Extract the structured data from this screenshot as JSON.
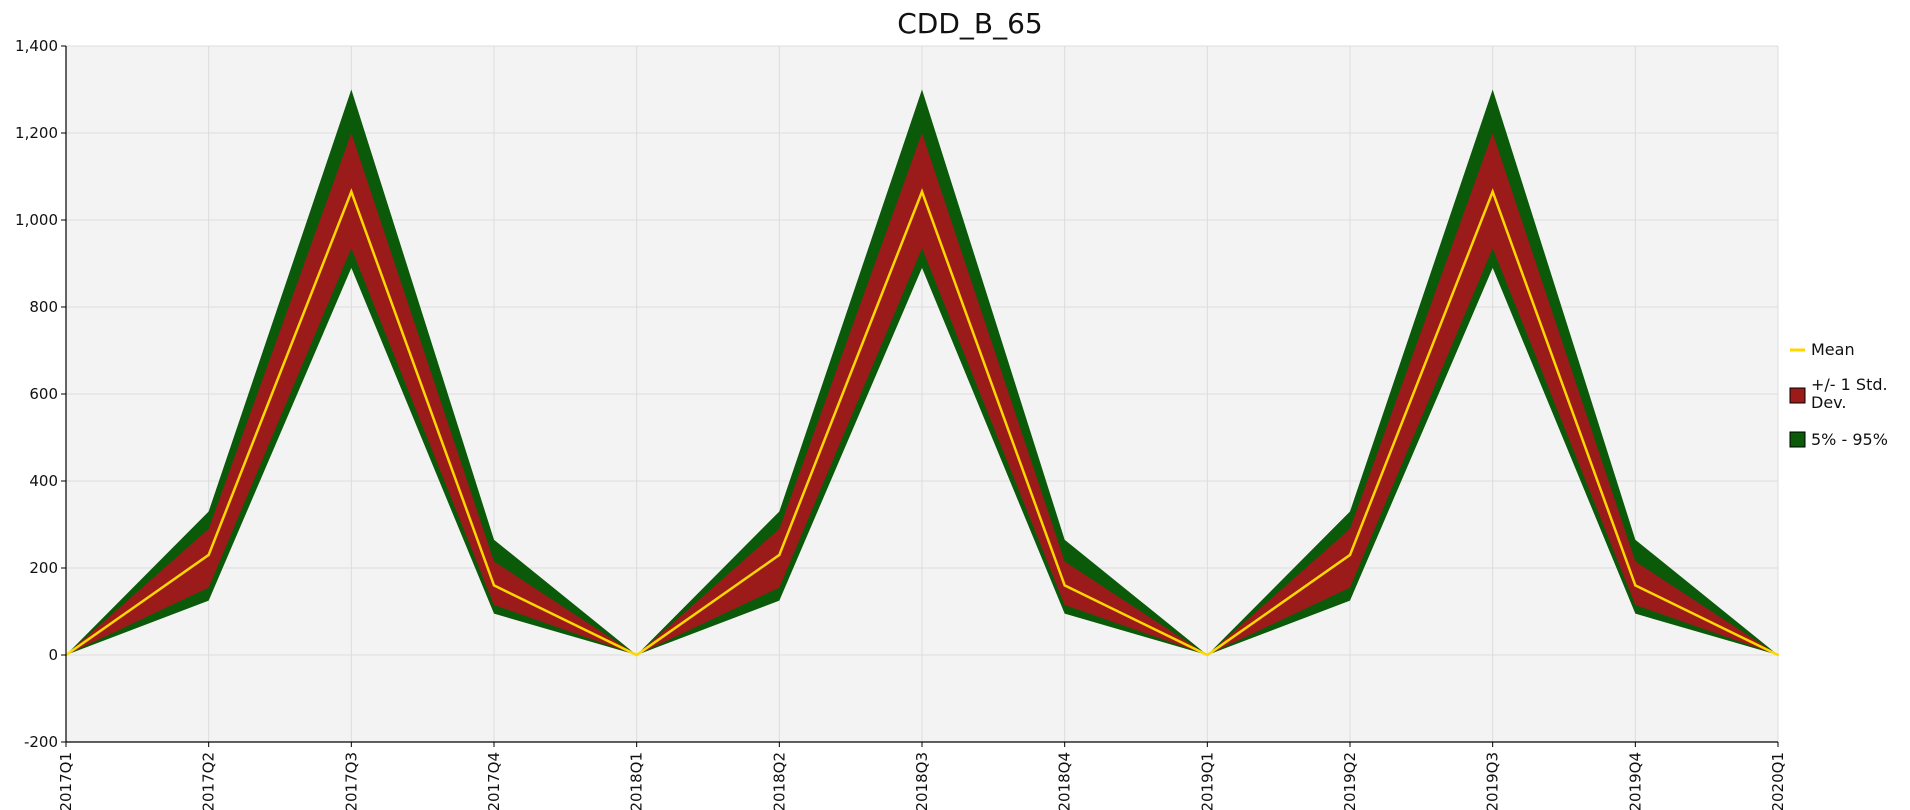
{
  "chart_data": {
    "type": "area",
    "title": "CDD_B_65",
    "xlabel": "",
    "ylabel": "",
    "categories": [
      "2017Q1",
      "2017Q2",
      "2017Q3",
      "2017Q4",
      "2018Q1",
      "2018Q2",
      "2018Q3",
      "2018Q4",
      "2019Q1",
      "2019Q2",
      "2019Q3",
      "2019Q4",
      "2020Q1"
    ],
    "ylim": [
      -200,
      1400
    ],
    "yticks": [
      -200,
      0,
      200,
      400,
      600,
      800,
      1000,
      1200,
      1400
    ],
    "ytick_labels": [
      "-200",
      "0",
      "200",
      "400",
      "600",
      "800",
      "1,000",
      "1,200",
      "1,400"
    ],
    "grid": true,
    "legend_position": "right",
    "series": [
      {
        "name": "Mean",
        "kind": "line",
        "color": "#FFD700",
        "values": [
          0,
          230,
          1065,
          160,
          0,
          230,
          1065,
          160,
          0,
          230,
          1065,
          160,
          0
        ]
      },
      {
        "name": "+/- 1 Std. Dev.",
        "kind": "band",
        "color": "#9B1B1B",
        "lower": [
          0,
          155,
          935,
          115,
          0,
          155,
          935,
          115,
          0,
          155,
          935,
          115,
          0
        ],
        "upper": [
          0,
          290,
          1200,
          215,
          0,
          290,
          1200,
          215,
          0,
          290,
          1200,
          215,
          0
        ]
      },
      {
        "name": "5% - 95%",
        "kind": "band",
        "color": "#0A5A0A",
        "lower": [
          0,
          125,
          890,
          95,
          0,
          125,
          890,
          95,
          0,
          125,
          890,
          95,
          0
        ],
        "upper": [
          0,
          330,
          1300,
          265,
          0,
          330,
          1300,
          265,
          0,
          330,
          1300,
          265,
          0
        ]
      }
    ],
    "colors": {
      "plot_background": "#F3F3F3",
      "axis": "#000000",
      "grid": "#DCDCDC"
    }
  }
}
